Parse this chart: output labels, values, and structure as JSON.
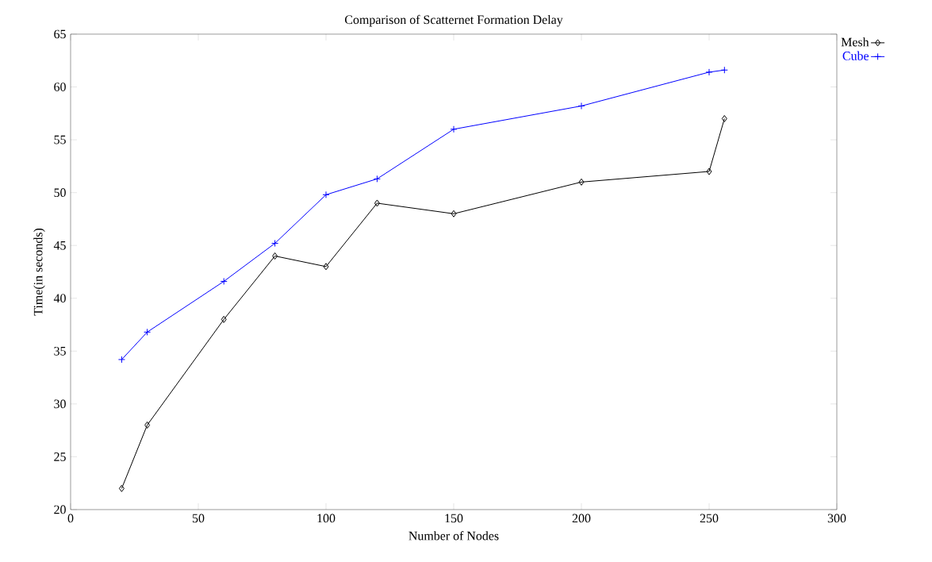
{
  "chart_data": {
    "type": "line",
    "title": "Comparison of Scatternet Formation Delay",
    "xlabel": "Number of Nodes",
    "ylabel": "Time(in seconds)",
    "x": [
      20,
      30,
      60,
      80,
      100,
      120,
      150,
      200,
      250,
      256
    ],
    "series": [
      {
        "name": "Mesh",
        "color": "#000000",
        "marker": "diamond",
        "values": [
          22,
          28,
          38,
          44,
          43,
          49,
          48,
          51,
          52,
          57
        ]
      },
      {
        "name": "Cube",
        "color": "#0000ff",
        "marker": "cross",
        "values": [
          34.2,
          36.8,
          41.6,
          45.2,
          49.8,
          51.3,
          56.0,
          58.2,
          61.4,
          61.6
        ]
      }
    ],
    "xlim": [
      0,
      300
    ],
    "ylim": [
      20,
      65
    ],
    "xticks": [
      0,
      50,
      100,
      150,
      200,
      250,
      300
    ],
    "yticks": [
      20,
      25,
      30,
      35,
      40,
      45,
      50,
      55,
      60,
      65
    ],
    "grid": false,
    "legend": "top right",
    "line_style": "solid"
  }
}
